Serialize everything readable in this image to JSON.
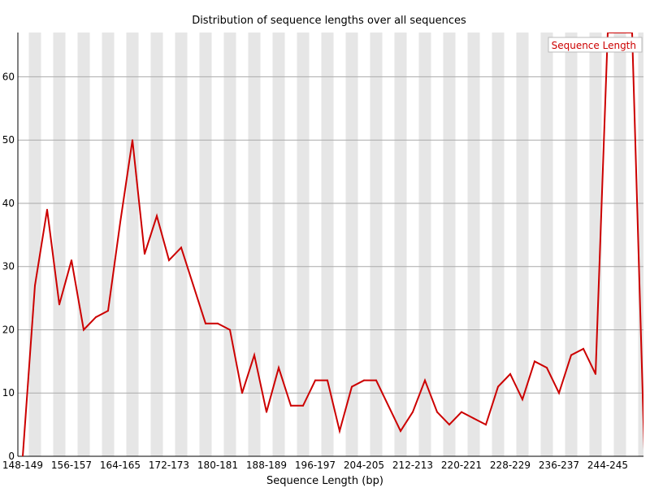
{
  "chart_data": {
    "type": "line",
    "title": "Distribution of sequence lengths over all sequences",
    "xlabel": "Sequence Length (bp)",
    "ylabel": "",
    "ylim": [
      0,
      67
    ],
    "y_ticks": [
      0,
      10,
      20,
      30,
      40,
      50,
      60
    ],
    "grid": "horizontal",
    "legend_position": "top-right",
    "background_bands": "alternating grey",
    "x_tick_labels": [
      "148-149",
      "156-157",
      "164-165",
      "172-173",
      "180-181",
      "188-189",
      "196-197",
      "204-205",
      "212-213",
      "220-221",
      "228-229",
      "236-237",
      "244-245"
    ],
    "categories": [
      "148-149",
      "150-151",
      "152-153",
      "154-155",
      "156-157",
      "158-159",
      "160-161",
      "162-163",
      "164-165",
      "166-167",
      "168-169",
      "170-171",
      "172-173",
      "174-175",
      "176-177",
      "178-179",
      "180-181",
      "182-183",
      "184-185",
      "186-187",
      "188-189",
      "190-191",
      "192-193",
      "194-195",
      "196-197",
      "198-199",
      "200-201",
      "202-203",
      "204-205",
      "206-207",
      "208-209",
      "210-211",
      "212-213",
      "214-215",
      "216-217",
      "218-219",
      "220-221",
      "222-223",
      "224-225",
      "226-227",
      "228-229",
      "230-231",
      "232-233",
      "234-235",
      "236-237",
      "238-239",
      "240-241",
      "242-243",
      "244-245",
      "246-247",
      "248-249",
      "250-251"
    ],
    "series": [
      {
        "name": "Sequence Length",
        "color": "#cc0000",
        "values": [
          0,
          27,
          39,
          24,
          31,
          20,
          22,
          23,
          37,
          50,
          32,
          38,
          31,
          33,
          27,
          21,
          21,
          20,
          10,
          16,
          7,
          14,
          8,
          8,
          12,
          12,
          4,
          11,
          12,
          12,
          8,
          4,
          7,
          12,
          7,
          5,
          7,
          6,
          5,
          11,
          13,
          9,
          15,
          14,
          10,
          16,
          17,
          13,
          67,
          67,
          67,
          1
        ]
      }
    ]
  }
}
